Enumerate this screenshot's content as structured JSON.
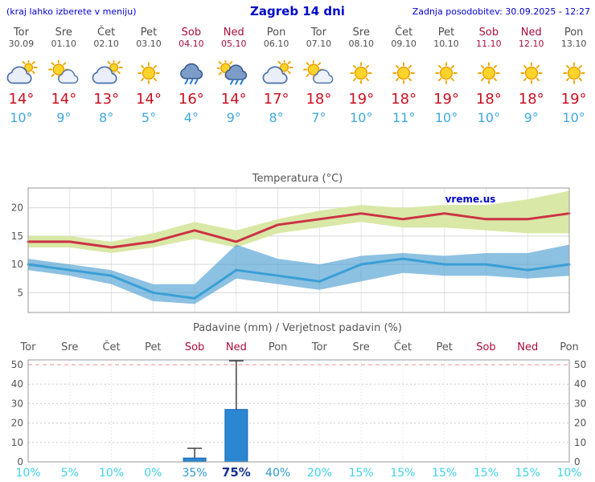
{
  "meta": {
    "left_note": "(kraj lahko izberete v meniju)",
    "title": "Zagreb 14 dni",
    "last_update": "Zadnja posodobitev: 30.09.2025 - 12:27",
    "watermark": "vreme.us"
  },
  "colors": {
    "header_blue": "#0000cc",
    "title_blue": "#0008c8",
    "day_gray": "#4d4d4d",
    "weekend_red": "#a80d3c",
    "tmax_red": "#cc1122",
    "tmin_blue": "#41a8e0",
    "temp_line_max": "#cc3344",
    "temp_line_min": "#3a9fd6",
    "band_green": "#d9e8a6",
    "band_blue_rgba": "rgba(80,160,210,0.65)",
    "bar_blue": "#2b87d1",
    "bar_stroke": "#1565b0",
    "prob_light": "#3fd2ea",
    "prob_med": "#2e97d5",
    "prob_dark": "#14338f",
    "grid_gray": "#d8d8d8",
    "plot_border": "#999999",
    "fifty_line": "#ee8f8f",
    "axis_text": "#555555"
  },
  "days": [
    {
      "name": "Tor",
      "date": "30.09",
      "weekend": false,
      "icon": "cloud-sun",
      "tmax": "14°",
      "tmin": "10°",
      "prob": "10%",
      "prob_level": "light"
    },
    {
      "name": "Sre",
      "date": "01.10",
      "weekend": false,
      "icon": "sun-cloud",
      "tmax": "14°",
      "tmin": "9°",
      "prob": "5%",
      "prob_level": "light"
    },
    {
      "name": "Čet",
      "date": "02.10",
      "weekend": false,
      "icon": "cloud-sun",
      "tmax": "13°",
      "tmin": "8°",
      "prob": "10%",
      "prob_level": "light"
    },
    {
      "name": "Pet",
      "date": "03.10",
      "weekend": false,
      "icon": "sun",
      "tmax": "14°",
      "tmin": "5°",
      "prob": "0%",
      "prob_level": "light"
    },
    {
      "name": "Sob",
      "date": "04.10",
      "weekend": true,
      "icon": "rain",
      "tmax": "16°",
      "tmin": "4°",
      "prob": "35%",
      "prob_level": "med"
    },
    {
      "name": "Ned",
      "date": "05.10",
      "weekend": true,
      "icon": "sun-rain",
      "tmax": "14°",
      "tmin": "9°",
      "prob": "75%",
      "prob_level": "dark"
    },
    {
      "name": "Pon",
      "date": "06.10",
      "weekend": false,
      "icon": "cloud-sun",
      "tmax": "17°",
      "tmin": "8°",
      "prob": "40%",
      "prob_level": "med"
    },
    {
      "name": "Tor",
      "date": "07.10",
      "weekend": false,
      "icon": "sun-cloud",
      "tmax": "18°",
      "tmin": "7°",
      "prob": "20%",
      "prob_level": "light"
    },
    {
      "name": "Sre",
      "date": "08.10",
      "weekend": false,
      "icon": "sun",
      "tmax": "19°",
      "tmin": "10°",
      "prob": "15%",
      "prob_level": "light"
    },
    {
      "name": "Čet",
      "date": "09.10",
      "weekend": false,
      "icon": "sun",
      "tmax": "18°",
      "tmin": "11°",
      "prob": "15%",
      "prob_level": "light"
    },
    {
      "name": "Pet",
      "date": "10.10",
      "weekend": false,
      "icon": "sun",
      "tmax": "19°",
      "tmin": "10°",
      "prob": "15%",
      "prob_level": "light"
    },
    {
      "name": "Sob",
      "date": "11.10",
      "weekend": true,
      "icon": "sun",
      "tmax": "18°",
      "tmin": "10°",
      "prob": "15%",
      "prob_level": "light"
    },
    {
      "name": "Ned",
      "date": "12.10",
      "weekend": true,
      "icon": "sun",
      "tmax": "18°",
      "tmin": "9°",
      "prob": "15%",
      "prob_level": "light"
    },
    {
      "name": "Pon",
      "date": "13.10",
      "weekend": false,
      "icon": "sun",
      "tmax": "19°",
      "tmin": "10°",
      "prob": "10%",
      "prob_level": "light"
    }
  ],
  "chart_data": [
    {
      "type": "line",
      "title": "Temperatura (°C)",
      "x_labels": [
        "Tor",
        "Sre",
        "Čet",
        "Pet",
        "Sob",
        "Ned",
        "Pon",
        "Tor",
        "Sre",
        "Čet",
        "Pet",
        "Sob",
        "Ned",
        "Pon"
      ],
      "ylim": [
        1.5,
        23.5
      ],
      "yticks": [
        5,
        10,
        15,
        20
      ],
      "grid": true,
      "legend": "none",
      "series": [
        {
          "name": "tmax",
          "values": [
            14,
            14,
            13,
            14,
            16,
            14,
            17,
            18,
            19,
            18,
            19,
            18,
            18,
            19
          ]
        },
        {
          "name": "tmin",
          "values": [
            10,
            9,
            8,
            5,
            4,
            9,
            8,
            7,
            10,
            11,
            10,
            10,
            9,
            10
          ]
        },
        {
          "name": "tmax_band_hi",
          "values": [
            15,
            15,
            14,
            15.5,
            17.5,
            16,
            18,
            19.5,
            20.5,
            20,
            20.5,
            20.5,
            21.5,
            23
          ]
        },
        {
          "name": "tmax_band_lo",
          "values": [
            13,
            13,
            12,
            13,
            14.5,
            13,
            15.5,
            16.5,
            17.5,
            16.5,
            16.5,
            16,
            15.5,
            15.5
          ]
        },
        {
          "name": "tmin_band_hi",
          "values": [
            11,
            10,
            9,
            6.5,
            6.5,
            13.5,
            11,
            10,
            11.5,
            12,
            11.5,
            12,
            12,
            13.5
          ]
        },
        {
          "name": "tmin_band_lo",
          "values": [
            9,
            8,
            6.5,
            3.5,
            3,
            7.5,
            6.5,
            5.5,
            7,
            8.5,
            8,
            8,
            7.5,
            8
          ]
        }
      ]
    },
    {
      "type": "bar",
      "title": "Padavine (mm) / Verjetnost padavin (%)",
      "x_labels": [
        "Tor",
        "Sre",
        "Čet",
        "Pet",
        "Sob",
        "Ned",
        "Pon",
        "Tor",
        "Sre",
        "Čet",
        "Pet",
        "Sob",
        "Ned",
        "Pon"
      ],
      "ylim": [
        0,
        52.5
      ],
      "yticks": [
        0,
        10,
        20,
        30,
        40,
        50
      ],
      "grid": true,
      "legend": "none",
      "series": [
        {
          "name": "padavine_mm",
          "values": [
            0,
            0,
            0,
            0,
            2,
            27,
            0,
            0,
            0,
            0,
            0,
            0,
            0,
            0
          ]
        },
        {
          "name": "padavine_max_mm",
          "values": [
            0,
            0,
            0,
            0,
            7,
            52,
            0,
            0,
            0,
            0,
            0,
            0,
            0,
            0
          ]
        },
        {
          "name": "verjetnost_pct",
          "values": [
            10,
            5,
            10,
            0,
            35,
            75,
            40,
            20,
            15,
            15,
            15,
            15,
            15,
            10
          ]
        }
      ]
    }
  ]
}
